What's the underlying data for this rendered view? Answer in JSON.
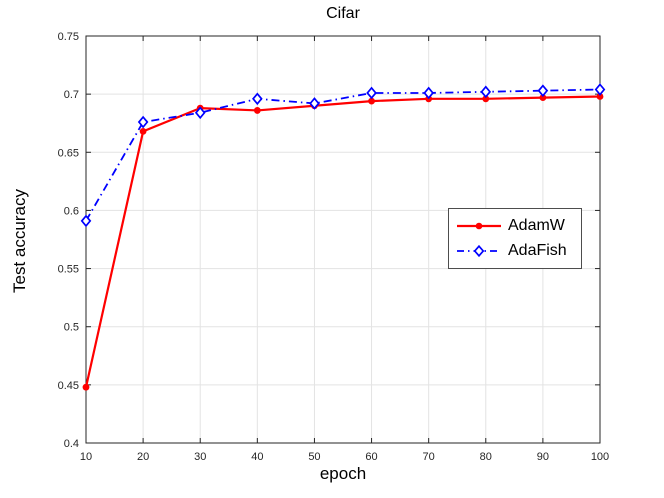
{
  "figure": {
    "background": "#ffffff",
    "axis_color": "#262626",
    "grid_color": "#e3e3e3",
    "tick_label_color": "#262626"
  },
  "chart_data": {
    "type": "line",
    "title": "Cifar",
    "xlabel": "epoch",
    "ylabel": "Test accuracy",
    "x": [
      10,
      20,
      30,
      40,
      50,
      60,
      70,
      80,
      90,
      100
    ],
    "series": [
      {
        "name": "AdamW",
        "color": "#ff0000",
        "line_style": "solid",
        "marker": "filled-circle",
        "values": [
          0.448,
          0.668,
          0.688,
          0.686,
          0.69,
          0.694,
          0.696,
          0.696,
          0.697,
          0.698
        ]
      },
      {
        "name": "AdaFish",
        "color": "#0000ff",
        "line_style": "dash-dot",
        "marker": "open-diamond",
        "values": [
          0.591,
          0.676,
          0.684,
          0.696,
          0.692,
          0.701,
          0.701,
          0.702,
          0.703,
          0.704
        ]
      }
    ],
    "xlim": [
      10,
      100
    ],
    "ylim": [
      0.4,
      0.75
    ],
    "xticks": [
      10,
      20,
      30,
      40,
      50,
      60,
      70,
      80,
      90,
      100
    ],
    "xtick_labels": [
      "10",
      "20",
      "30",
      "40",
      "50",
      "60",
      "70",
      "80",
      "90",
      "100"
    ],
    "yticks": [
      0.4,
      0.45,
      0.5,
      0.55,
      0.6,
      0.65,
      0.7,
      0.75
    ],
    "ytick_labels": [
      "0.4",
      "0.45",
      "0.5",
      "0.55",
      "0.6",
      "0.65",
      "0.7",
      "0.75"
    ],
    "grid": true,
    "legend_position": "right-middle"
  }
}
